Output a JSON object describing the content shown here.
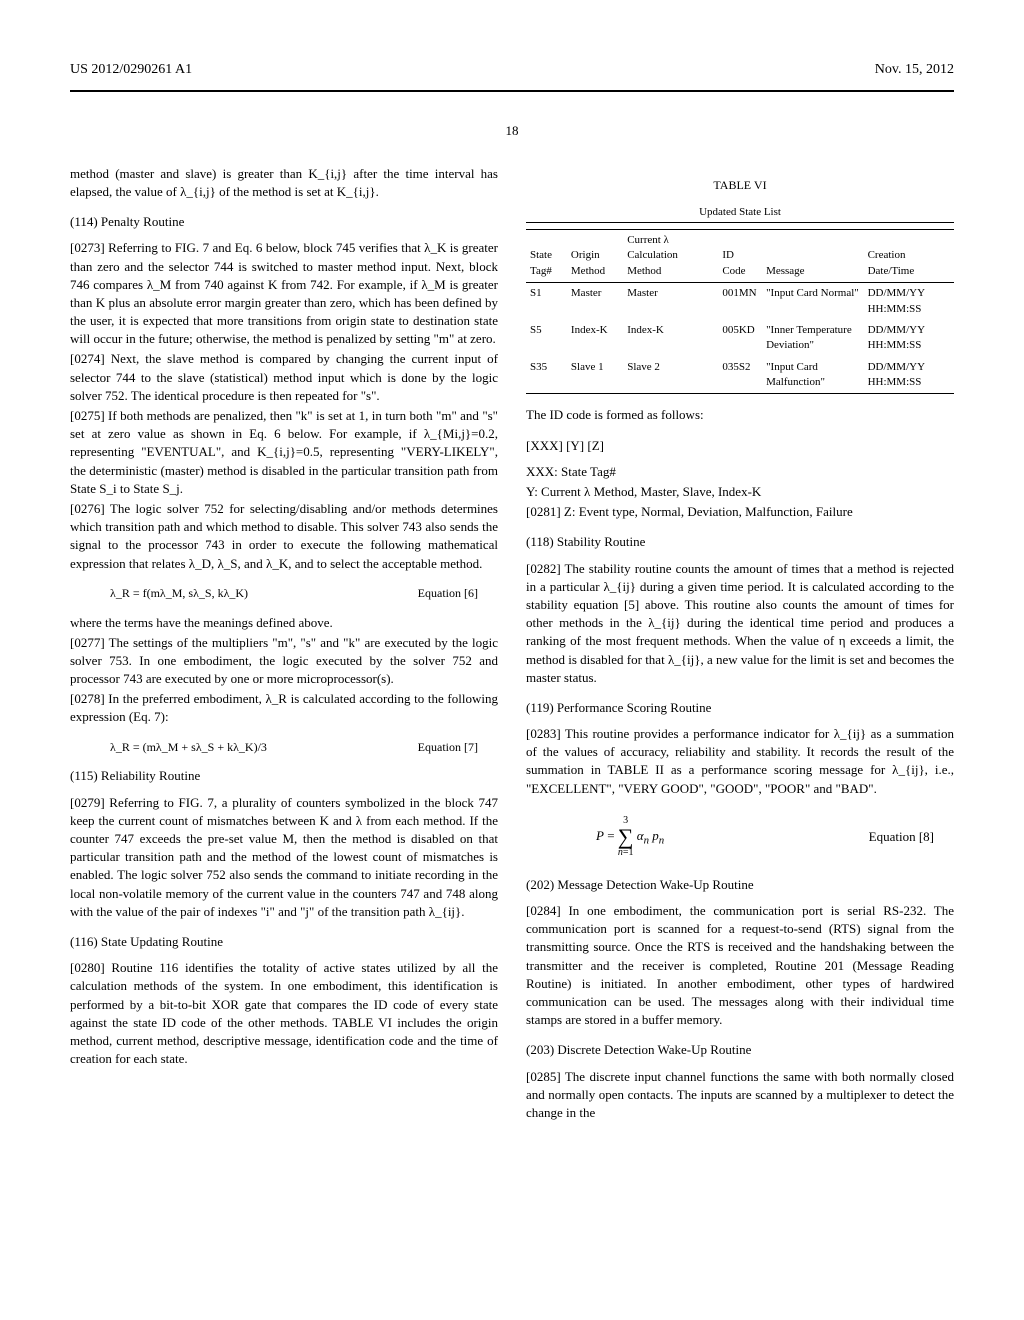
{
  "header": {
    "left": "US 2012/0290261 A1",
    "right": "Nov. 15, 2012"
  },
  "page_number": "18",
  "left_column": {
    "intro": "method (master and slave) is greater than K_{i,j} after the time interval has elapsed, the value of λ_{i,j} of the method is set at K_{i,j}.",
    "s114": {
      "title": "(114) Penalty Routine",
      "p273": "[0273]  Referring to FIG. 7 and Eq. 6 below, block 745 verifies that λ_K is greater than zero and the selector 744 is switched to master method input. Next, block 746 compares λ_M from 740 against K from 742. For example, if λ_M is greater than K plus an absolute error margin greater than zero, which has been defined by the user, it is expected that more transitions from origin state to destination state will occur in the future; otherwise, the method is penalized by setting \"m\" at zero.",
      "p274": "[0274]  Next, the slave method is compared by changing the current input of selector 744 to the slave (statistical) method input which is done by the logic solver 752. The identical procedure is then repeated for \"s\".",
      "p275": "[0275]  If both methods are penalized, then \"k\" is set at 1, in turn both \"m\" and \"s\" set at zero value as shown in Eq. 6 below. For example, if λ_{Mi,j}=0.2, representing \"EVENTUAL\", and K_{i,j}=0.5, representing \"VERY-LIKELY\", the deterministic (master) method is disabled in the particular transition path from State S_i to State S_j.",
      "p276": "[0276]  The logic solver 752 for selecting/disabling and/or methods determines which transition path and which method to disable. This solver 743 also sends the signal to the processor 743 in order to execute the following mathematical expression that relates λ_D, λ_S, and λ_K, and to select the acceptable method.",
      "eq6": "λ_R = f(mλ_M, sλ_S, kλ_K)",
      "eq6_label": "Equation [6]",
      "where": "where the terms have the meanings defined above.",
      "p277": "[0277]  The settings of the multipliers \"m\", \"s\" and \"k\" are executed by the logic solver 753. In one embodiment, the logic executed by the solver 752 and processor 743 are executed by one or more microprocessor(s).",
      "p278": "[0278]  In the preferred embodiment, λ_R is calculated according to the following expression (Eq. 7):",
      "eq7": "λ_R = (mλ_M + sλ_S + kλ_K)/3",
      "eq7_label": "Equation [7]"
    },
    "s115": {
      "title": "(115) Reliability Routine",
      "p279": "[0279]  Referring to FIG. 7, a plurality of counters symbolized in the block 747 keep the current count of mismatches between K and λ from each method. If the counter 747 exceeds the pre-set value M, then the method is disabled on that particular transition path and the method of the lowest count of mismatches is enabled. The logic solver 752 also sends the command to initiate recording in the local non-volatile memory of the current value in the counters 747 and 748 along with the value of the pair of indexes \"i\" and \"j\" of the transition path λ_{ij}."
    },
    "s116": {
      "title": "(116) State Updating Routine",
      "p280": "[0280]  Routine 116 identifies the totality of active states utilized by all the calculation methods of the system. In one embodiment, this identification is performed by a bit-to-bit XOR gate that compares the ID code of every state against the state ID code of the other methods. TABLE VI includes the origin method, current method, descriptive message, identification code and the time of creation for each state."
    }
  },
  "right_column": {
    "table6": {
      "caption": "TABLE VI",
      "subcaption": "Updated State List",
      "headers": [
        "State Tag#",
        "Origin Method",
        "Current λ Calculation Method",
        "ID Code",
        "Message",
        "Creation Date/Time"
      ],
      "rows": [
        [
          "S1",
          "Master",
          "Master",
          "001MN",
          "\"Input Card Normal\"",
          "DD/MM/YY HH:MM:SS"
        ],
        [
          "S5",
          "Index-K",
          "Index-K",
          "005KD",
          "\"Inner Temperature Deviation\"",
          "DD/MM/YY HH:MM:SS"
        ],
        [
          "S35",
          "Slave 1",
          "Slave 2",
          "035S2",
          "\"Input Card Malfunction\"",
          "DD/MM/YY HH:MM:SS"
        ]
      ]
    },
    "id_format": {
      "intro": "The ID code is formed as follows:",
      "pattern": "[XXX] [Y] [Z]",
      "xxx": "XXX: State Tag#",
      "y": "Y: Current λ Method, Master, Slave, Index-K",
      "p281": "[0281]  Z: Event type, Normal, Deviation, Malfunction, Failure"
    },
    "s118": {
      "title": "(118) Stability Routine",
      "p282": "[0282]  The stability routine counts the amount of times that a method is rejected in a particular λ_{ij} during a given time period. It is calculated according to the stability equation [5] above. This routine also counts the amount of times for other methods in the λ_{ij} during the identical time period and produces a ranking of the most frequent methods. When the value of η exceeds a limit, the method is disabled for that λ_{ij}, a new value for the limit is set and becomes the master status."
    },
    "s119": {
      "title": "(119) Performance Scoring Routine",
      "p283": "[0283]  This routine provides a performance indicator for λ_{ij} as a summation of the values of accuracy, reliability and stability. It records the result of the summation in TABLE II as a performance scoring message for λ_{ij}, i.e., \"EXCELLENT\", \"VERY GOOD\", \"GOOD\", \"POOR\" and \"BAD\".",
      "eq8_label": "Equation [8]"
    },
    "s202": {
      "title": "(202) Message Detection Wake-Up Routine",
      "p284": "[0284]  In one embodiment, the communication port is serial RS-232. The communication port is scanned for a request-to-send (RTS) signal from the transmitting source. Once the RTS is received and the handshaking between the transmitter and the receiver is completed, Routine 201 (Message Reading Routine) is initiated. In another embodiment, other types of hardwired communication can be used. The messages along with their individual time stamps are stored in a buffer memory."
    },
    "s203": {
      "title": "(203) Discrete Detection Wake-Up Routine",
      "p285": "[0285]  The discrete input channel functions the same with both normally closed and normally open contacts. The inputs are scanned by a multiplexer to detect the change in the"
    }
  }
}
